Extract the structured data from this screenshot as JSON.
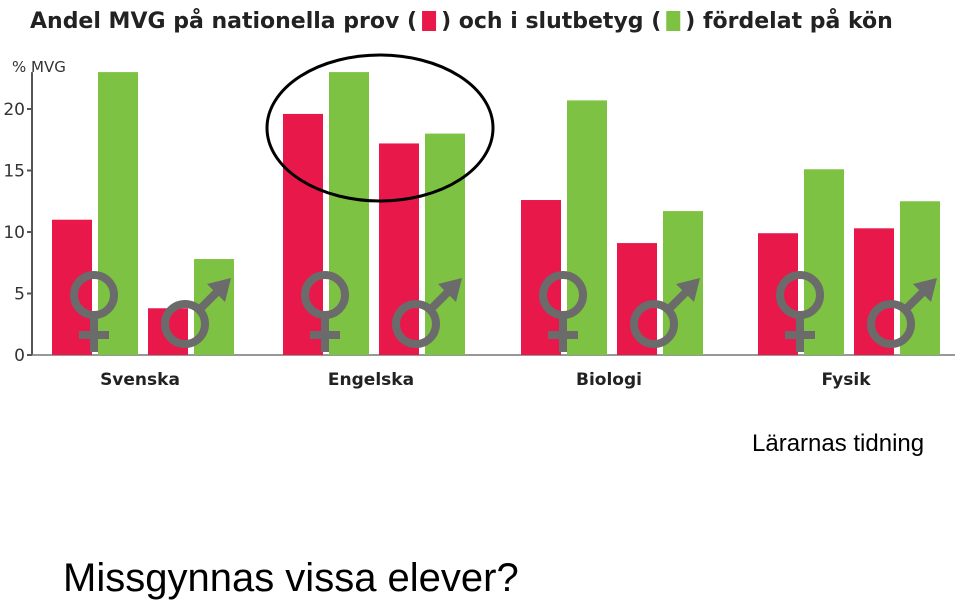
{
  "chart_data": {
    "type": "bar",
    "title": {
      "part1": "Andel MVG på nationella prov (",
      "part2": ") och i slutbetyg (",
      "part3": ") fördelat på kön"
    },
    "ylabel": "% MVG",
    "ylim": [
      0,
      23
    ],
    "yticks": [
      0,
      5,
      10,
      15,
      20
    ],
    "categories": [
      "Svenska",
      "Engelska",
      "Biologi",
      "Fysik"
    ],
    "genders": [
      "female",
      "male"
    ],
    "series": [
      {
        "key": "nationella_prov",
        "color": "#e8184a",
        "values": {
          "female": [
            11.0,
            19.6,
            12.6,
            9.9
          ],
          "male": [
            3.8,
            17.2,
            9.1,
            10.3
          ]
        }
      },
      {
        "key": "slutbetyg",
        "color": "#7dc242",
        "values": {
          "female": [
            23.0,
            23.0,
            20.7,
            15.1
          ],
          "male": [
            7.8,
            18.0,
            11.7,
            12.5
          ]
        }
      }
    ],
    "highlight": "Engelska",
    "grid": false,
    "legend": "title"
  },
  "source": "Lärarnas tidning",
  "question": "Missgynnas vissa elever?"
}
